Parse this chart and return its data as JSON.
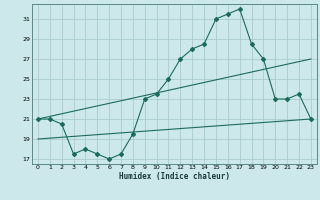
{
  "title": "",
  "xlabel": "Humidex (Indice chaleur)",
  "background_color": "#cce8ea",
  "grid_color": "#aacccc",
  "line_color": "#1a6b5a",
  "xlim": [
    -0.5,
    23.5
  ],
  "ylim": [
    16.5,
    32.5
  ],
  "xticks": [
    0,
    1,
    2,
    3,
    4,
    5,
    6,
    7,
    8,
    9,
    10,
    11,
    12,
    13,
    14,
    15,
    16,
    17,
    18,
    19,
    20,
    21,
    22,
    23
  ],
  "yticks": [
    17,
    19,
    21,
    23,
    25,
    27,
    29,
    31
  ],
  "line1": {
    "x": [
      0,
      1,
      2,
      3,
      4,
      5,
      6,
      7,
      8,
      9,
      10,
      11,
      12,
      13,
      14,
      15,
      16,
      17,
      18,
      19,
      20,
      21,
      22,
      23
    ],
    "y": [
      21,
      21,
      20.5,
      17.5,
      18,
      17.5,
      17,
      17.5,
      19.5,
      23,
      23.5,
      25,
      27,
      28,
      28.5,
      31,
      31.5,
      32,
      28.5,
      27,
      23,
      23,
      23.5,
      21
    ]
  },
  "line2": {
    "x": [
      0,
      23
    ],
    "y": [
      21,
      27
    ]
  },
  "line3": {
    "x": [
      0,
      23
    ],
    "y": [
      19,
      21
    ]
  }
}
